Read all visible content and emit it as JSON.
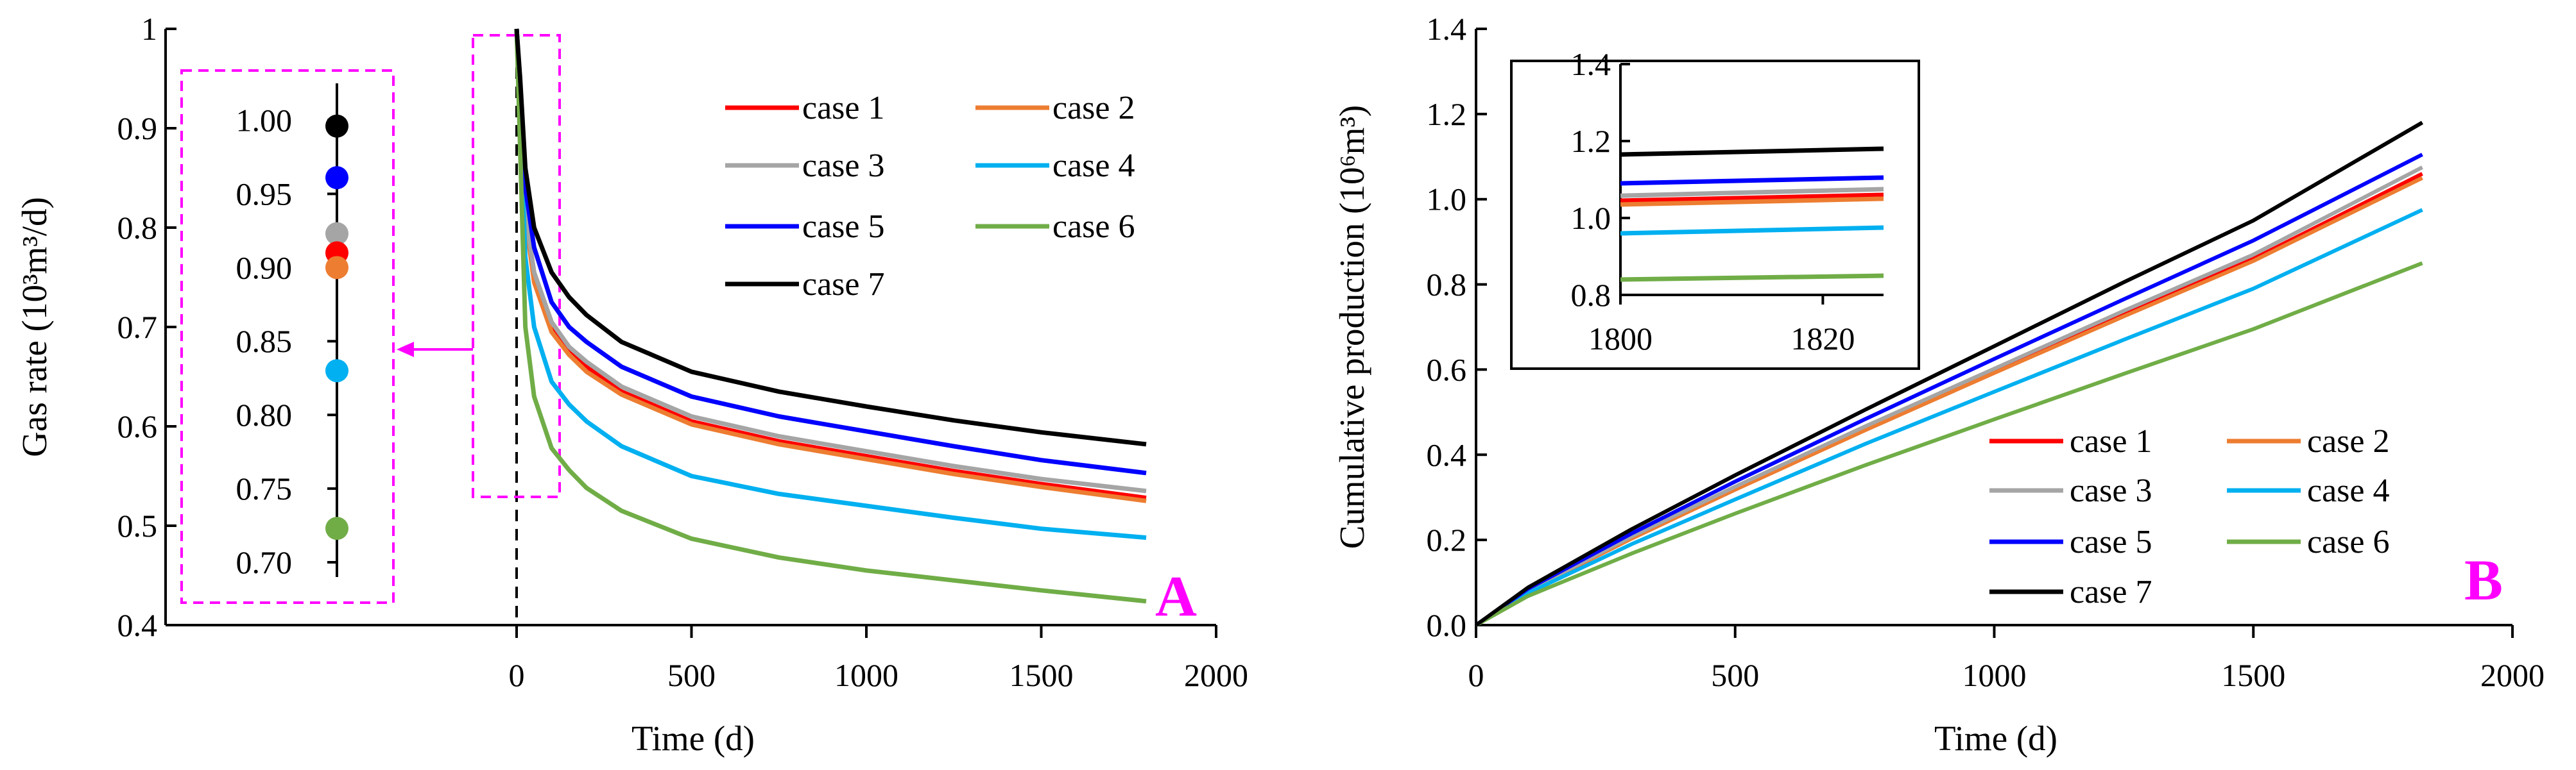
{
  "colors": {
    "case 1": "#ff0000",
    "case 2": "#ed7d31",
    "case 3": "#a5a5a5",
    "case 4": "#00b0f0",
    "case 5": "#0000ff",
    "case 6": "#70ad47",
    "case 7": "#000000",
    "highlight": "#ff00ff"
  },
  "chart_data": [
    {
      "type": "line",
      "panel_label": "A",
      "xlabel": "Time (d)",
      "ylabel": "Gas rate (10³m³/d)",
      "xlim": [
        0,
        2000
      ],
      "ylim": [
        0.4,
        1.0
      ],
      "xticks": [
        "0",
        "500",
        "1000",
        "1500",
        "2000"
      ],
      "yticks": [
        "0.4",
        "0.5",
        "0.6",
        "0.7",
        "0.8",
        "0.9",
        "1"
      ],
      "x": [
        0,
        10,
        25,
        50,
        100,
        150,
        200,
        300,
        500,
        750,
        1000,
        1250,
        1500,
        1800
      ],
      "series": [
        {
          "name": "case 1",
          "values": [
            1.0,
            0.93,
            0.81,
            0.75,
            0.7,
            0.675,
            0.66,
            0.635,
            0.605,
            0.585,
            0.57,
            0.555,
            0.542,
            0.528
          ]
        },
        {
          "name": "case 2",
          "values": [
            1.0,
            0.93,
            0.81,
            0.745,
            0.695,
            0.672,
            0.655,
            0.632,
            0.602,
            0.582,
            0.567,
            0.552,
            0.539,
            0.525
          ]
        },
        {
          "name": "case 3",
          "values": [
            1.0,
            0.93,
            0.815,
            0.755,
            0.705,
            0.68,
            0.665,
            0.64,
            0.61,
            0.59,
            0.575,
            0.56,
            0.547,
            0.535
          ]
        },
        {
          "name": "case 4",
          "values": [
            1.0,
            0.91,
            0.77,
            0.7,
            0.645,
            0.622,
            0.605,
            0.58,
            0.55,
            0.532,
            0.52,
            0.508,
            0.497,
            0.488
          ]
        },
        {
          "name": "case 5",
          "values": [
            1.0,
            0.94,
            0.84,
            0.78,
            0.725,
            0.7,
            0.685,
            0.66,
            0.63,
            0.61,
            0.595,
            0.58,
            0.566,
            0.553
          ]
        },
        {
          "name": "case 6",
          "values": [
            1.0,
            0.88,
            0.7,
            0.63,
            0.578,
            0.556,
            0.538,
            0.515,
            0.487,
            0.468,
            0.455,
            0.445,
            0.435,
            0.424
          ]
        },
        {
          "name": "case 7",
          "values": [
            1.0,
            0.95,
            0.86,
            0.8,
            0.755,
            0.73,
            0.712,
            0.685,
            0.655,
            0.635,
            0.62,
            0.606,
            0.594,
            0.582
          ]
        }
      ],
      "inset": {
        "type": "scatter",
        "yticks": [
          "1.00",
          "0.95",
          "0.90",
          "0.85",
          "0.80",
          "0.75",
          "0.70"
        ],
        "ylim": [
          0.69,
          1.025
        ],
        "points": [
          {
            "name": "case 7",
            "value": 0.996
          },
          {
            "name": "case 5",
            "value": 0.961
          },
          {
            "name": "case 3",
            "value": 0.923
          },
          {
            "name": "case 1",
            "value": 0.91
          },
          {
            "name": "case 2",
            "value": 0.9
          },
          {
            "name": "case 4",
            "value": 0.83
          },
          {
            "name": "case 6",
            "value": 0.723
          }
        ]
      },
      "legend_placement": "top-right"
    },
    {
      "type": "line",
      "panel_label": "B",
      "xlabel": "Time (d)",
      "ylabel": "Cumulative production (10⁶m³)",
      "xlim": [
        0,
        2000
      ],
      "ylim": [
        0.0,
        1.4
      ],
      "xticks": [
        "0",
        "500",
        "1000",
        "1500",
        "2000"
      ],
      "yticks": [
        "0.0",
        "0.2",
        "0.4",
        "0.6",
        "0.8",
        "1.0",
        "1.2",
        "1.4"
      ],
      "x": [
        0,
        100,
        300,
        500,
        750,
        1000,
        1250,
        1500,
        1826
      ],
      "series": [
        {
          "name": "case 1",
          "values": [
            0,
            0.08,
            0.205,
            0.32,
            0.46,
            0.595,
            0.73,
            0.86,
            1.06
          ]
        },
        {
          "name": "case 2",
          "values": [
            0,
            0.08,
            0.203,
            0.318,
            0.457,
            0.592,
            0.725,
            0.855,
            1.05
          ]
        },
        {
          "name": "case 3",
          "values": [
            0,
            0.081,
            0.208,
            0.325,
            0.466,
            0.602,
            0.738,
            0.87,
            1.075
          ]
        },
        {
          "name": "case 4",
          "values": [
            0,
            0.075,
            0.19,
            0.295,
            0.425,
            0.548,
            0.67,
            0.79,
            0.975
          ]
        },
        {
          "name": "case 5",
          "values": [
            0,
            0.085,
            0.215,
            0.337,
            0.483,
            0.625,
            0.765,
            0.903,
            1.105
          ]
        },
        {
          "name": "case 6",
          "values": [
            0,
            0.068,
            0.168,
            0.262,
            0.375,
            0.483,
            0.59,
            0.695,
            0.85
          ]
        },
        {
          "name": "case 7",
          "values": [
            0,
            0.088,
            0.225,
            0.352,
            0.505,
            0.655,
            0.805,
            0.95,
            1.18
          ]
        }
      ],
      "inset": {
        "type": "line",
        "xlim": [
          1800,
          1826
        ],
        "ylim": [
          0.8,
          1.4
        ],
        "xticks": [
          "1800",
          "1820"
        ],
        "yticks": [
          "0.8",
          "1.0",
          "1.2",
          "1.4"
        ],
        "series": [
          {
            "name": "case 1",
            "values": [
              1.045,
              1.06
            ]
          },
          {
            "name": "case 2",
            "values": [
              1.035,
              1.05
            ]
          },
          {
            "name": "case 3",
            "values": [
              1.058,
              1.075
            ]
          },
          {
            "name": "case 4",
            "values": [
              0.96,
              0.975
            ]
          },
          {
            "name": "case 5",
            "values": [
              1.09,
              1.105
            ]
          },
          {
            "name": "case 6",
            "values": [
              0.84,
              0.85
            ]
          },
          {
            "name": "case 7",
            "values": [
              1.165,
              1.18
            ]
          }
        ]
      },
      "legend_placement": "bottom-right"
    }
  ]
}
